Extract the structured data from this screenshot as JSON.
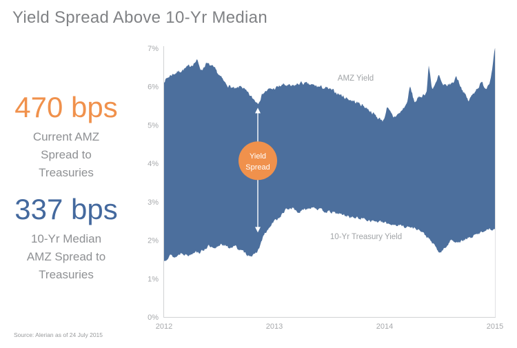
{
  "page": {
    "title": "Yield Spread Above 10-Yr Median",
    "source": "Source: Alerian as of 24 July 2015"
  },
  "stats": [
    {
      "value": "470 bps",
      "label_lines": [
        "Current AMZ",
        "Spread to",
        "Treasuries"
      ],
      "color": "#f0914c"
    },
    {
      "value": "337 bps",
      "label_lines": [
        "10-Yr Median",
        "AMZ Spread to",
        "Treasuries"
      ],
      "color": "#44699e"
    }
  ],
  "chart_data": {
    "type": "area",
    "title": "Yield Spread Above 10-Yr Median",
    "xlabel": "",
    "ylabel": "",
    "xlim": [
      2012,
      2015
    ],
    "ylim": [
      0,
      7
    ],
    "grid": false,
    "x_tick_labels": [
      "2012",
      "2013",
      "2014",
      "2015"
    ],
    "y_tick_labels": [
      "0%",
      "1%",
      "2%",
      "3%",
      "4%",
      "5%",
      "6%",
      "7%"
    ],
    "band_color": "#4c6f9d",
    "axis_color": "#d0d2d4",
    "series": [
      {
        "name": "AMZ Yield",
        "x": [
          2012.0,
          2012.06,
          2012.12,
          2012.18,
          2012.24,
          2012.3,
          2012.34,
          2012.38,
          2012.42,
          2012.46,
          2012.5,
          2012.55,
          2012.6,
          2012.65,
          2012.7,
          2012.75,
          2012.8,
          2012.85,
          2012.9,
          2012.95,
          2013.0,
          2013.08,
          2013.16,
          2013.24,
          2013.32,
          2013.4,
          2013.48,
          2013.56,
          2013.64,
          2013.72,
          2013.8,
          2013.88,
          2013.94,
          2013.99,
          2014.02,
          2014.08,
          2014.14,
          2014.2,
          2014.23,
          2014.27,
          2014.33,
          2014.38,
          2014.4,
          2014.43,
          2014.47,
          2014.49,
          2014.53,
          2014.58,
          2014.62,
          2014.65,
          2014.7,
          2014.76,
          2014.82,
          2014.88,
          2014.92,
          2014.96,
          2015.0
        ],
        "values": [
          6.15,
          6.3,
          6.38,
          6.45,
          6.55,
          6.68,
          6.42,
          6.6,
          6.55,
          6.45,
          6.3,
          6.1,
          6.0,
          5.92,
          6.02,
          5.85,
          5.7,
          5.58,
          5.85,
          5.92,
          5.95,
          6.05,
          6.0,
          6.1,
          6.05,
          6.0,
          5.95,
          5.85,
          5.72,
          5.62,
          5.52,
          5.35,
          5.18,
          5.12,
          5.45,
          5.2,
          5.32,
          5.55,
          6.0,
          5.6,
          5.75,
          5.85,
          6.55,
          5.95,
          6.1,
          6.3,
          6.0,
          6.05,
          6.1,
          6.28,
          5.95,
          5.62,
          5.9,
          6.1,
          5.95,
          6.2,
          7.0
        ]
      },
      {
        "name": "10-Yr Treasury Yield",
        "x": [
          2012.0,
          2012.05,
          2012.1,
          2012.16,
          2012.22,
          2012.28,
          2012.33,
          2012.4,
          2012.46,
          2012.52,
          2012.58,
          2012.64,
          2012.7,
          2012.76,
          2012.82,
          2012.86,
          2012.9,
          2012.95,
          2013.0,
          2013.05,
          2013.1,
          2013.16,
          2013.22,
          2013.28,
          2013.35,
          2013.42,
          2013.5,
          2013.6,
          2013.7,
          2013.8,
          2013.9,
          2014.0,
          2014.1,
          2014.2,
          2014.3,
          2014.38,
          2014.44,
          2014.5,
          2014.55,
          2014.6,
          2014.68,
          2014.76,
          2014.84,
          2014.9,
          2014.95,
          2015.0
        ],
        "values": [
          1.45,
          1.62,
          1.55,
          1.68,
          1.6,
          1.72,
          1.68,
          1.85,
          1.75,
          1.92,
          1.8,
          1.85,
          1.72,
          1.62,
          1.6,
          1.78,
          2.1,
          2.3,
          2.5,
          2.6,
          2.78,
          2.85,
          2.72,
          2.8,
          2.88,
          2.78,
          2.73,
          2.68,
          2.6,
          2.56,
          2.5,
          2.45,
          2.4,
          2.35,
          2.3,
          2.1,
          1.9,
          1.66,
          1.8,
          2.0,
          1.95,
          2.05,
          2.15,
          2.25,
          2.3,
          2.3
        ]
      }
    ],
    "annotation": {
      "label_lines": [
        "Yield",
        "Spread"
      ],
      "x": 2012.85,
      "arrow_top_value": 5.45,
      "arrow_bottom_value": 2.2,
      "circle_center_value": 4.07,
      "circle_color": "#f0914c",
      "arrow_color": "#ffffff"
    },
    "current_spread_bps": 470,
    "median_spread_bps": 337
  }
}
